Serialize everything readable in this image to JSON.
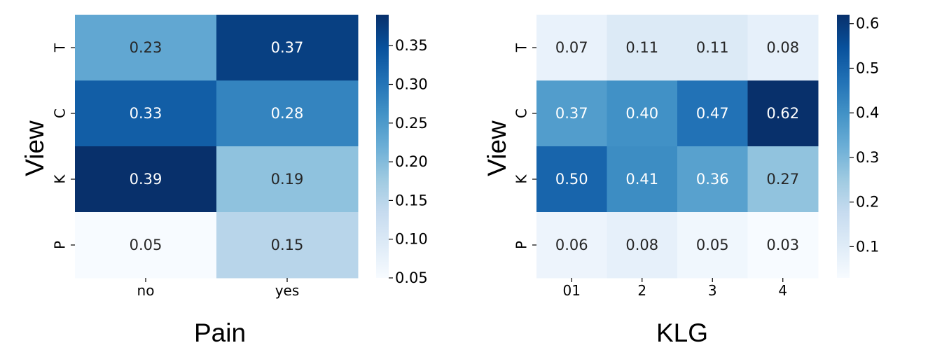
{
  "chart_data": [
    {
      "type": "heatmap",
      "xlabel": "Pain",
      "ylabel": "View",
      "x_categories": [
        "no",
        "yes"
      ],
      "y_categories": [
        "T",
        "C",
        "K",
        "P"
      ],
      "values": [
        [
          0.23,
          0.37
        ],
        [
          0.33,
          0.28
        ],
        [
          0.39,
          0.19
        ],
        [
          0.05,
          0.15
        ]
      ],
      "value_labels": [
        [
          "0.23",
          "0.37"
        ],
        [
          "0.33",
          "0.28"
        ],
        [
          "0.39",
          "0.19"
        ],
        [
          "0.05",
          "0.15"
        ]
      ],
      "vmin": 0.05,
      "vmax": 0.39,
      "colormap": "Blues",
      "colorbar_ticks": [
        0.05,
        0.1,
        0.15,
        0.2,
        0.25,
        0.3,
        0.35
      ],
      "colorbar_tick_labels": [
        "0.05",
        "0.10",
        "0.15",
        "0.20",
        "0.25",
        "0.30",
        "0.35"
      ]
    },
    {
      "type": "heatmap",
      "xlabel": "KLG",
      "ylabel": "View",
      "x_categories": [
        "01",
        "2",
        "3",
        "4"
      ],
      "y_categories": [
        "T",
        "C",
        "K",
        "P"
      ],
      "values": [
        [
          0.07,
          0.11,
          0.11,
          0.08
        ],
        [
          0.37,
          0.4,
          0.47,
          0.62
        ],
        [
          0.5,
          0.41,
          0.36,
          0.27
        ],
        [
          0.06,
          0.08,
          0.05,
          0.03
        ]
      ],
      "value_labels": [
        [
          "0.07",
          "0.11",
          "0.11",
          "0.08"
        ],
        [
          "0.37",
          "0.40",
          "0.47",
          "0.62"
        ],
        [
          "0.50",
          "0.41",
          "0.36",
          "0.27"
        ],
        [
          "0.06",
          "0.08",
          "0.05",
          "0.03"
        ]
      ],
      "vmin": 0.03,
      "vmax": 0.62,
      "colormap": "Blues",
      "colorbar_ticks": [
        0.1,
        0.2,
        0.3,
        0.4,
        0.5,
        0.6
      ],
      "colorbar_tick_labels": [
        "0.1",
        "0.2",
        "0.3",
        "0.4",
        "0.5",
        "0.6"
      ]
    }
  ]
}
